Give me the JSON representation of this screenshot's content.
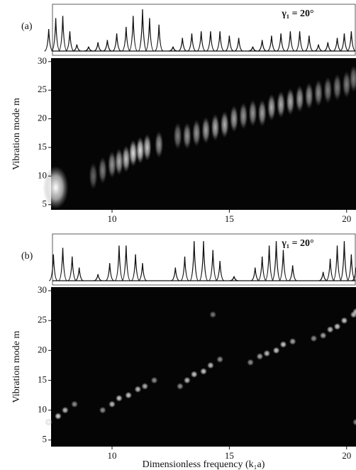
{
  "chart_data": [
    {
      "type": "spectrogram",
      "label": "(a)",
      "annotation": "γ₁ = 20°",
      "ylabel": "Vibration mode m",
      "xlim": [
        7.4,
        20.4
      ],
      "ylim": [
        4.1,
        30.6
      ],
      "xticks": [
        10,
        15,
        20
      ],
      "yticks": [
        5,
        10,
        15,
        20,
        25,
        30
      ],
      "peaks": {
        "x": [
          7.3,
          7.6,
          7.9,
          8.2,
          8.5,
          9.0,
          9.4,
          9.8,
          10.2,
          10.6,
          10.9,
          11.3,
          11.6,
          12.0,
          12.6,
          13.0,
          13.4,
          13.8,
          14.2,
          14.6,
          15.0,
          15.4,
          16.0,
          16.4,
          16.8,
          17.2,
          17.6,
          18.0,
          18.4,
          18.8,
          19.2,
          19.6,
          19.9,
          20.2
        ],
        "height": [
          0.5,
          0.75,
          0.8,
          0.45,
          0.15,
          0.1,
          0.2,
          0.25,
          0.4,
          0.55,
          0.8,
          0.95,
          0.75,
          0.6,
          0.1,
          0.3,
          0.4,
          0.45,
          0.45,
          0.45,
          0.35,
          0.3,
          0.1,
          0.25,
          0.35,
          0.4,
          0.45,
          0.45,
          0.35,
          0.15,
          0.2,
          0.3,
          0.4,
          0.45
        ]
      },
      "spots": {
        "x": [
          7.6,
          9.2,
          9.6,
          10.0,
          10.3,
          10.6,
          10.9,
          11.2,
          11.5,
          12.0,
          12.8,
          13.2,
          13.6,
          14.0,
          14.4,
          14.8,
          15.2,
          15.6,
          16.0,
          16.4,
          16.8,
          17.2,
          17.6,
          18.0,
          18.4,
          18.8,
          19.2,
          19.6,
          20.0,
          20.3
        ],
        "mode": [
          8,
          10,
          11,
          12,
          12.5,
          13,
          14,
          14.5,
          15,
          15.5,
          17,
          17,
          17.5,
          18,
          18.5,
          19,
          20,
          20.5,
          21,
          21,
          22,
          22.5,
          23,
          23.5,
          24,
          24.5,
          25,
          25.5,
          26,
          27
        ],
        "intensity": [
          1,
          0.4,
          0.5,
          0.6,
          0.7,
          0.8,
          0.9,
          0.9,
          0.8,
          0.6,
          0.5,
          0.6,
          0.6,
          0.65,
          0.7,
          0.7,
          0.65,
          0.6,
          0.6,
          0.65,
          0.7,
          0.7,
          0.7,
          0.65,
          0.6,
          0.55,
          0.5,
          0.5,
          0.5,
          0.5
        ]
      }
    },
    {
      "type": "spectrogram",
      "label": "(b)",
      "annotation": "γ₁ = 20°",
      "ylabel": "Vibration mode m",
      "xlabel": "Dimensionless frequency (k₁a)",
      "xlim": [
        7.4,
        20.4
      ],
      "ylim": [
        3.9,
        30.6
      ],
      "xticks": [
        10,
        15,
        20
      ],
      "yticks": [
        5,
        10,
        15,
        20,
        25,
        30
      ],
      "peaks": {
        "x": [
          7.5,
          7.9,
          8.3,
          8.6,
          9.4,
          9.9,
          10.3,
          10.6,
          11.0,
          11.3,
          12.7,
          13.1,
          13.5,
          13.9,
          14.3,
          14.6,
          15.2,
          16.1,
          16.4,
          16.7,
          17.0,
          17.3,
          17.7,
          19.0,
          19.3,
          19.6,
          19.9,
          20.2,
          20.4
        ],
        "height": [
          0.6,
          0.75,
          0.55,
          0.3,
          0.15,
          0.4,
          0.8,
          0.8,
          0.6,
          0.4,
          0.3,
          0.55,
          0.9,
          0.9,
          0.7,
          0.45,
          0.1,
          0.3,
          0.55,
          0.8,
          0.9,
          0.7,
          0.35,
          0.2,
          0.5,
          0.8,
          0.9,
          0.6,
          0.3
        ]
      },
      "spots": {
        "x": [
          7.3,
          7.7,
          8.0,
          8.4,
          9.6,
          10.0,
          10.3,
          10.7,
          11.1,
          11.4,
          11.8,
          12.9,
          13.2,
          13.5,
          13.9,
          14.2,
          14.6,
          15.9,
          16.3,
          16.6,
          17.0,
          17.3,
          17.7,
          18.6,
          19.0,
          19.3,
          19.6,
          19.9,
          20.3,
          14.3,
          20.4,
          20.4
        ],
        "mode": [
          8,
          9,
          10,
          11,
          10,
          11,
          12,
          12.5,
          13.5,
          14,
          15,
          14,
          15,
          16,
          16.5,
          17.5,
          18.5,
          18,
          19,
          19.5,
          20,
          21,
          21.5,
          22,
          22.5,
          23.5,
          24,
          25,
          26,
          26,
          26.5,
          8
        ],
        "intensity": [
          0.9,
          0.9,
          0.8,
          0.6,
          0.6,
          0.8,
          0.85,
          0.85,
          0.8,
          0.75,
          0.6,
          0.6,
          0.8,
          0.85,
          0.85,
          0.8,
          0.6,
          0.6,
          0.7,
          0.8,
          0.85,
          0.85,
          0.7,
          0.6,
          0.7,
          0.8,
          0.85,
          0.85,
          0.8,
          0.5,
          0.8,
          0.6
        ]
      }
    }
  ]
}
